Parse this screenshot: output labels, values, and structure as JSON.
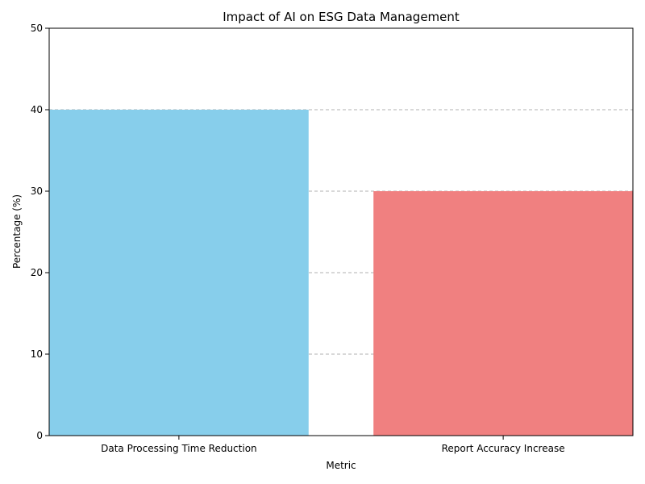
{
  "chart_data": {
    "type": "bar",
    "title": "Impact of AI on ESG Data Management",
    "xlabel": "Metric",
    "ylabel": "Percentage (%)",
    "categories": [
      "Data Processing Time Reduction",
      "Report Accuracy Increase"
    ],
    "values": [
      40,
      30
    ],
    "colors": [
      "#87CEEB",
      "#F08080"
    ],
    "ylim": [
      0,
      50
    ],
    "yticks": [
      0,
      10,
      20,
      30,
      40,
      50
    ],
    "grid": "y-dashed",
    "grid_color": "#b0b0b0"
  }
}
